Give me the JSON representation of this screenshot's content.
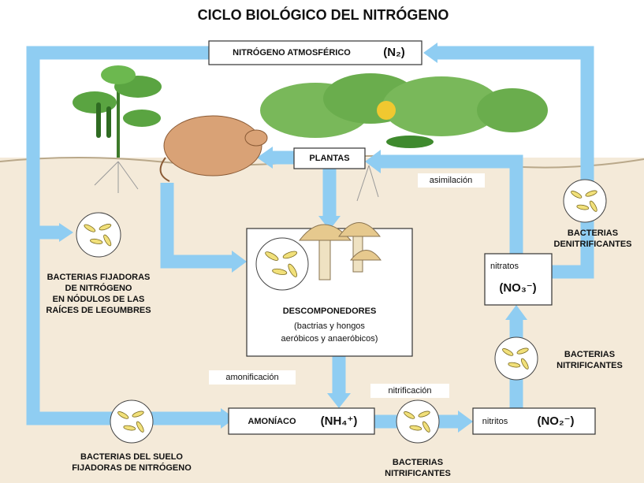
{
  "title": "CICLO BIOLÓGICO DEL NITRÓGENO",
  "atmospheric": {
    "label": "NITRÓGENO ATMOSFÉRICO",
    "formula": "(N₂)"
  },
  "plants": "PLANTAS",
  "assimilation": "asimilación",
  "denitrifying": [
    "BACTERIAS",
    "DENITRIFICANTES"
  ],
  "nitrates": {
    "label": "nitratos",
    "formula": "(NO₃⁻)"
  },
  "fixing_roots": [
    "BACTERIAS FIJADORAS",
    "DE NITRÓGENO",
    "EN NÓDULOS DE LAS",
    "RAÍCES DE LEGUMBRES"
  ],
  "decomposers": {
    "label": "DESCOMPONEDORES",
    "detail": [
      "(bactrias y hongos",
      "aeróbicos y anaeróbicos)"
    ]
  },
  "ammonification": "amonificación",
  "nitrification": "nitrificación",
  "nitrifying_right": [
    "BACTERIAS",
    "NITRIFICANTES"
  ],
  "ammonia": {
    "label": "AMONÍACO",
    "formula": "(NH₄⁺)"
  },
  "nitrites": {
    "label": "nitritos",
    "formula": "(NO₂⁻)"
  },
  "soil_fixing": [
    "BACTERIAS DEL SUELO",
    "FIJADORAS DE NITRÓGENO"
  ],
  "nitrifying_bottom": [
    "BACTERIAS",
    "NITRIFICANTES"
  ]
}
